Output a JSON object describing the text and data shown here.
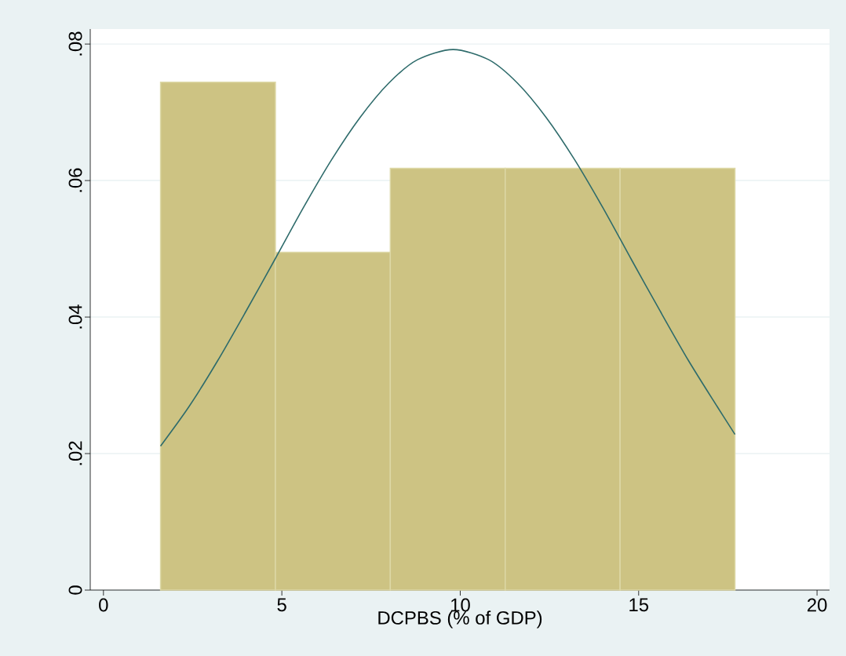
{
  "chart_data": {
    "type": "histogram",
    "xlabel": "DCPBS (% of GDP)",
    "xlim": [
      -0.37,
      20.35
    ],
    "ylim": [
      0,
      0.0822
    ],
    "xticks": [
      0,
      5,
      10,
      15,
      20
    ],
    "yticks": [
      {
        "value": 0,
        "label": "0"
      },
      {
        "value": 0.02,
        "label": ".02"
      },
      {
        "value": 0.04,
        "label": ".04"
      },
      {
        "value": 0.06,
        "label": ".06"
      },
      {
        "value": 0.08,
        "label": ".08"
      }
    ],
    "grid": "y",
    "series": [
      {
        "color": "#cdc383",
        "bins": [
          1.6,
          4.82,
          8.04,
          11.26,
          14.48,
          17.7
        ],
        "values": [
          0.0744,
          0.0495,
          0.0618,
          0.0618,
          0.0618
        ]
      },
      {
        "type": "line",
        "color": "#2e6b6b",
        "x": [
          1.6,
          2.4,
          3.2,
          4.0,
          4.8,
          5.6,
          6.4,
          7.2,
          8.0,
          8.8,
          9.8,
          10.8,
          11.6,
          12.4,
          13.2,
          14.0,
          14.8,
          15.6,
          16.4,
          17.2,
          17.7
        ],
        "values": [
          0.0211,
          0.0269,
          0.0336,
          0.0409,
          0.0484,
          0.056,
          0.0631,
          0.0693,
          0.0743,
          0.0777,
          0.0792,
          0.0777,
          0.0743,
          0.0693,
          0.0631,
          0.056,
          0.0484,
          0.0409,
          0.0336,
          0.0269,
          0.0228
        ]
      }
    ]
  }
}
